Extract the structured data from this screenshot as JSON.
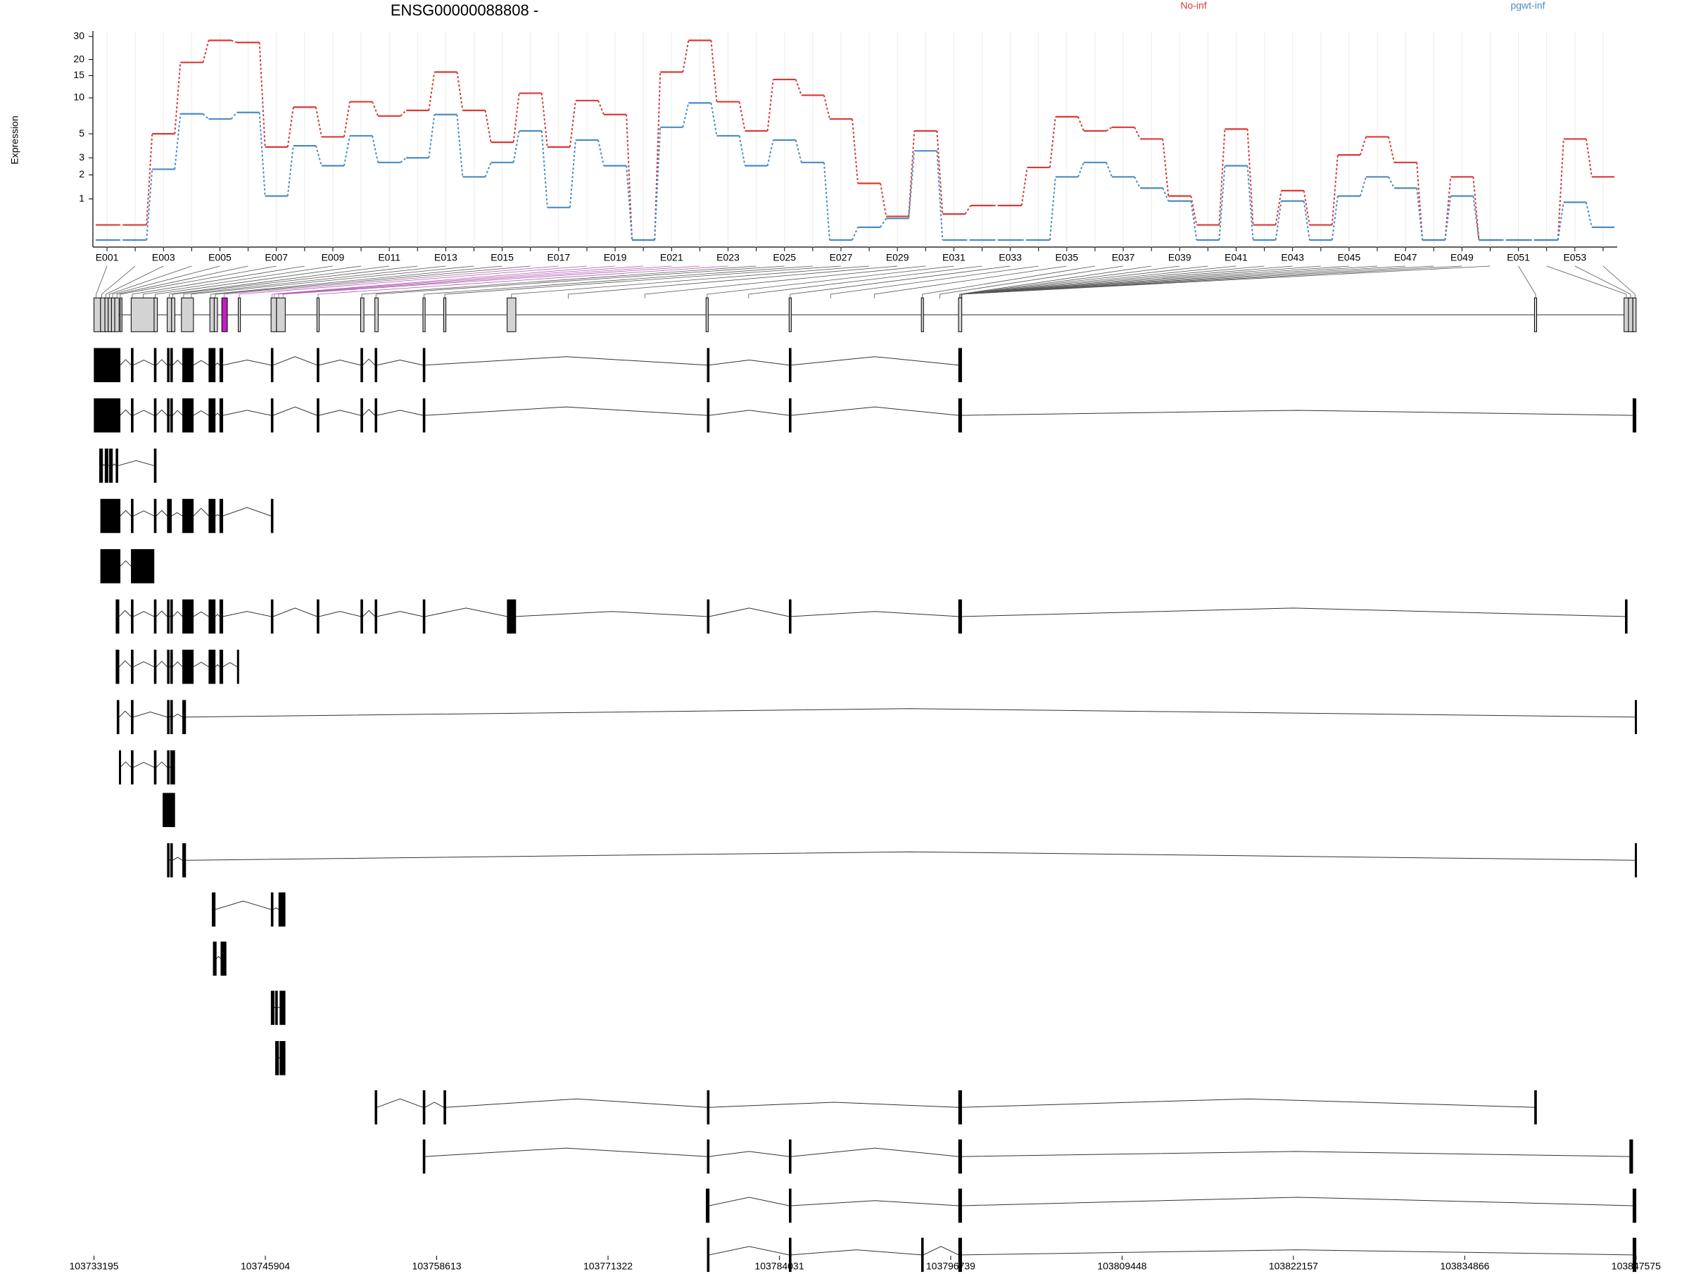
{
  "chart_data": {
    "type": "line",
    "title": "ENSG00000088808 -",
    "y_label": "Expression",
    "yscale": "log10(x+1)",
    "categories": [
      "E001",
      null,
      "E003",
      null,
      "E005",
      null,
      "E007",
      null,
      "E009",
      null,
      "E011",
      null,
      "E013",
      null,
      "E015",
      null,
      "E017",
      null,
      "E019",
      null,
      "E021",
      null,
      "E023",
      null,
      "E025",
      null,
      "E027",
      null,
      "E029",
      null,
      "E031",
      null,
      "E033",
      null,
      "E035",
      null,
      "E037",
      null,
      "E039",
      null,
      "E041",
      null,
      "E043",
      null,
      "E045",
      null,
      "E047",
      null,
      "E049",
      null,
      "E051",
      null,
      "E053",
      null
    ],
    "series": [
      {
        "name": "No-inf",
        "color": "#d93a35",
        "values": [
          0.29,
          0.29,
          5.0,
          19,
          28,
          27,
          3.8,
          8.4,
          4.7,
          9.3,
          7.1,
          7.9,
          16,
          7.9,
          4.2,
          10.9,
          3.8,
          9.5,
          7.3,
          0,
          16,
          28,
          9.3,
          5.3,
          14,
          10.5,
          6.7,
          1.6,
          0.49,
          5.3,
          0.55,
          0.79,
          0.79,
          2.4,
          7.0,
          5.3,
          5.7,
          4.5,
          1.1,
          0.29,
          5.5,
          0.29,
          1.3,
          0.29,
          3.2,
          4.7,
          2.7,
          0,
          1.9,
          0,
          0,
          0,
          4.5,
          1.9
        ]
      },
      {
        "name": "pgwt-inf",
        "color": "#4a8cc4",
        "values": [
          0,
          0,
          2.3,
          7.4,
          6.7,
          7.6,
          1.1,
          3.9,
          2.5,
          4.8,
          2.7,
          3.0,
          7.3,
          1.9,
          2.7,
          5.3,
          0.73,
          4.4,
          2.5,
          0,
          5.7,
          9.1,
          4.8,
          2.5,
          4.4,
          2.7,
          0,
          0.24,
          0.44,
          3.5,
          0,
          0,
          0,
          0,
          1.9,
          2.7,
          1.9,
          1.4,
          0.93,
          0,
          2.5,
          0,
          0.93,
          0,
          1.1,
          1.9,
          1.4,
          0,
          1.1,
          0,
          0,
          0,
          0.89,
          0.24
        ]
      }
    ],
    "ylim": [
      0,
      33
    ],
    "yticks": [
      1,
      2,
      3,
      5,
      10,
      15,
      20,
      30
    ],
    "grid": "x",
    "legend": "top"
  },
  "gene_model": {
    "xlim": [
      103733195,
      103847575
    ],
    "xticks": [
      103733195,
      103745904,
      103758613,
      103771322,
      103784031,
      103796739,
      103809448,
      103822157,
      103834866,
      103847575
    ]
  }
}
